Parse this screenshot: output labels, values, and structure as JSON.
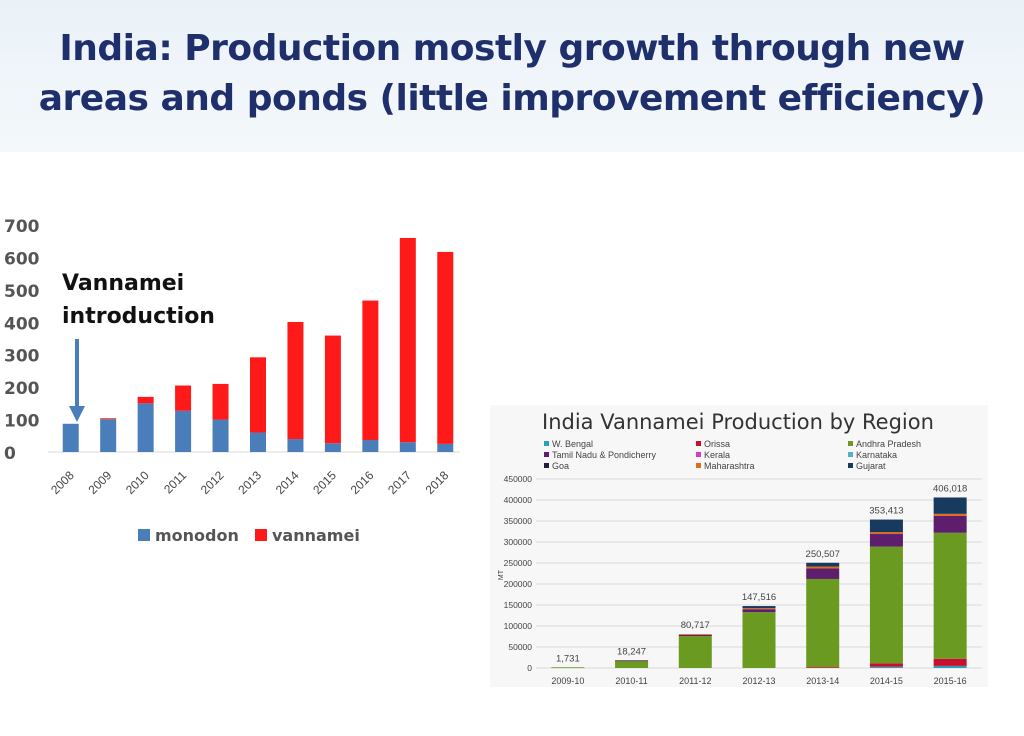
{
  "title": {
    "line1": "India:  Production mostly  growth through new",
    "line2": "areas and ponds (little improvement efficiency)"
  },
  "chart_data": [
    {
      "type": "bar",
      "stacked": true,
      "categories": [
        "2008",
        "2009",
        "2010",
        "2011",
        "2012",
        "2013",
        "2014",
        "2015",
        "2016",
        "2017",
        "2018"
      ],
      "series": [
        {
          "name": "monodon",
          "color": "#4a7ebb",
          "values": [
            87,
            101,
            150,
            127,
            100,
            60,
            40,
            27,
            37,
            30,
            25
          ]
        },
        {
          "name": "vannamei",
          "color": "#ff1a1a",
          "values": [
            0,
            3,
            20,
            78,
            110,
            232,
            361,
            332,
            430,
            630,
            592
          ]
        }
      ],
      "ylim": [
        0,
        700
      ],
      "yticks": [
        "0",
        "100",
        "200",
        "300",
        "400",
        "500",
        "600",
        "700"
      ],
      "annotation": {
        "line1": "Vannamei",
        "line2": "introduction"
      },
      "legend_position": "bottom"
    },
    {
      "type": "bar",
      "stacked": true,
      "title": "India Vannamei Production by Region",
      "ylabel": "MT",
      "categories": [
        "2009-10",
        "2010-11",
        "2011-12",
        "2012-13",
        "2013-14",
        "2014-15",
        "2015-16"
      ],
      "totals_labels": [
        "1,731",
        "18,247",
        "80,717",
        "147,516",
        "250,507",
        "353,413",
        "406,018"
      ],
      "legend_position": "top",
      "ylim": [
        0,
        450000
      ],
      "yticks": [
        "0",
        "50000",
        "100000",
        "150000",
        "200000",
        "250000",
        "300000",
        "350000",
        "400000",
        "450000"
      ],
      "series": [
        {
          "name": "W. Bengal",
          "color": "#2aa0b8",
          "values": [
            0,
            0,
            0,
            0,
            0,
            3000,
            5000
          ]
        },
        {
          "name": "Orissa",
          "color": "#c8102e",
          "values": [
            0,
            0,
            0,
            0,
            2000,
            8000,
            17000
          ]
        },
        {
          "name": "Andhra Pradesh",
          "color": "#6a9a1f",
          "values": [
            1731,
            18000,
            76000,
            133000,
            210000,
            278000,
            300000
          ]
        },
        {
          "name": "Tamil Nadu & Pondicherry",
          "color": "#5e1e6e",
          "values": [
            0,
            247,
            3000,
            7000,
            25000,
            30000,
            40000
          ]
        },
        {
          "name": "Kerala",
          "color": "#d63ac8",
          "values": [
            0,
            0,
            0,
            0,
            0,
            0,
            0
          ]
        },
        {
          "name": "Karnataka",
          "color": "#4fb3c8",
          "values": [
            0,
            0,
            0,
            0,
            0,
            0,
            0
          ]
        },
        {
          "name": "Goa",
          "color": "#2a1a3e",
          "values": [
            0,
            0,
            0,
            0,
            0,
            0,
            0
          ]
        },
        {
          "name": "Maharashtra",
          "color": "#e06c1c",
          "values": [
            0,
            0,
            1717,
            2516,
            4507,
            4413,
            5018
          ]
        },
        {
          "name": "Gujarat",
          "color": "#173a5e",
          "values": [
            0,
            0,
            0,
            5000,
            9000,
            30000,
            39000
          ]
        }
      ]
    }
  ]
}
